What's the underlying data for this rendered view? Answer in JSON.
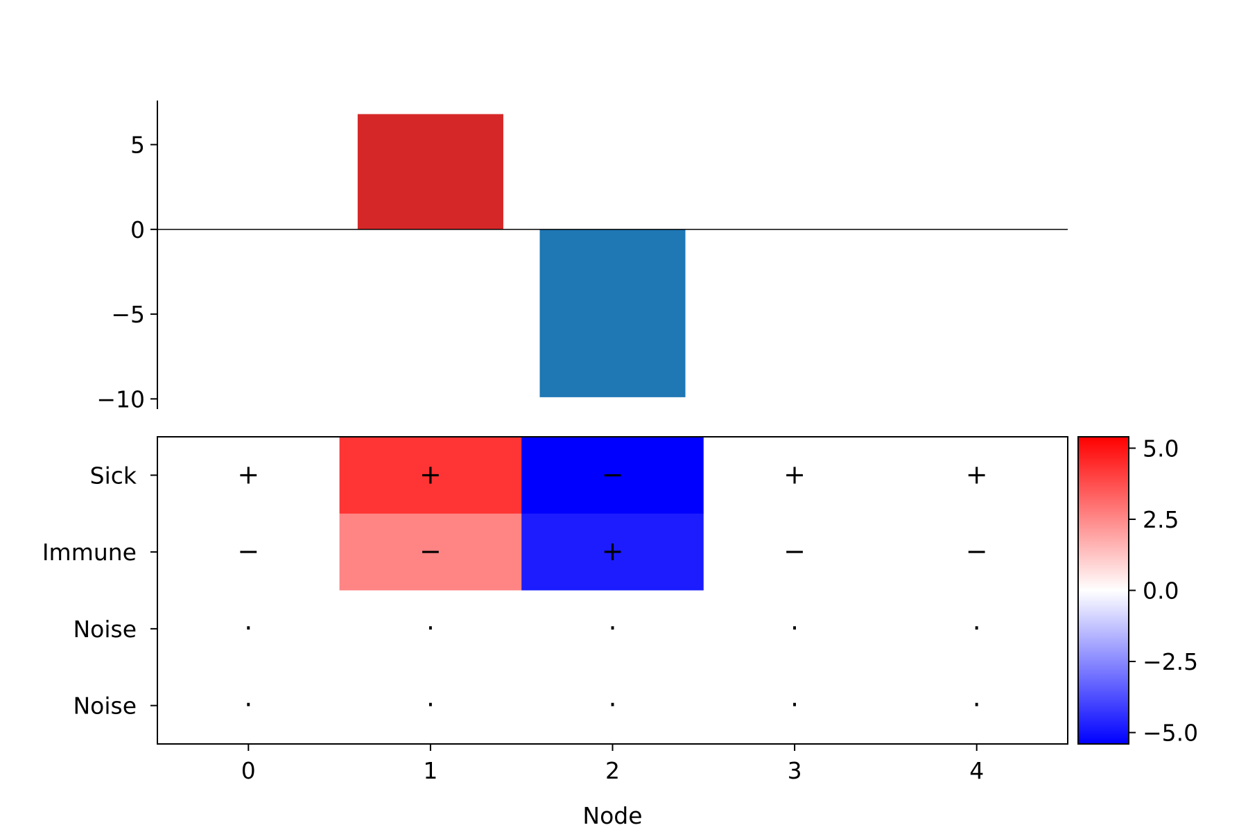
{
  "chart_data": [
    {
      "type": "bar",
      "categories": [
        0,
        1,
        2,
        3,
        4
      ],
      "values": [
        0,
        6.8,
        -9.9,
        0,
        0
      ],
      "colors": [
        "#d62728",
        "#d62728",
        "#1f77b4",
        "#d62728",
        "#d62728"
      ],
      "ylim": [
        -10.6,
        7.6
      ],
      "yticks": [
        5,
        0,
        -5,
        -10
      ],
      "ytick_labels": [
        "5",
        "0",
        "−5",
        "−10"
      ],
      "zero_line": true,
      "grid": false
    },
    {
      "type": "heatmap",
      "columns": [
        0,
        1,
        2,
        3,
        4
      ],
      "xtick_labels": [
        "0",
        "1",
        "2",
        "3",
        "4"
      ],
      "rows": [
        "Sick",
        "Immune",
        "Noise",
        "Noise"
      ],
      "values": [
        [
          0,
          4.3,
          -5.4,
          0,
          0
        ],
        [
          0,
          2.6,
          -4.8,
          0,
          0
        ],
        [
          0,
          0,
          0,
          0,
          0
        ],
        [
          0,
          0,
          0,
          0,
          0
        ]
      ],
      "symbols": [
        [
          "+",
          "+",
          "−",
          "+",
          "+"
        ],
        [
          "−",
          "−",
          "+",
          "−",
          "−"
        ],
        [
          "·",
          "·",
          "·",
          "·",
          "·"
        ],
        [
          "·",
          "·",
          "·",
          "·",
          "·"
        ]
      ],
      "xlabel": "Node",
      "colormap": "bwr",
      "vmin": -5.4,
      "vmax": 5.4,
      "colorbar_ticks": [
        5.0,
        2.5,
        0.0,
        -2.5,
        -5.0
      ],
      "colorbar_tick_labels": [
        "5.0",
        "2.5",
        "0.0",
        "−2.5",
        "−5.0"
      ]
    }
  ]
}
